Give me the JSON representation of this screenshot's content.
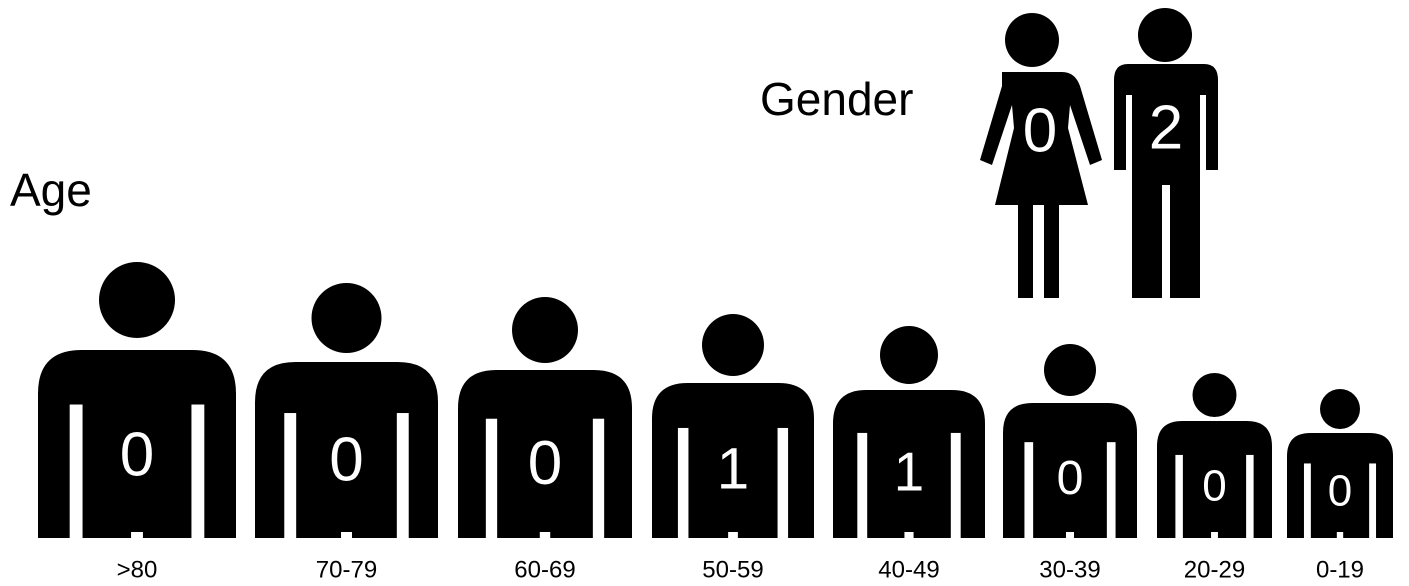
{
  "age": {
    "title": "Age",
    "groups": [
      {
        "label": ">80",
        "count": 0
      },
      {
        "label": "70-79",
        "count": 0
      },
      {
        "label": "60-69",
        "count": 0
      },
      {
        "label": "50-59",
        "count": 1
      },
      {
        "label": "40-49",
        "count": 1
      },
      {
        "label": "30-39",
        "count": 0
      },
      {
        "label": "20-29",
        "count": 0
      },
      {
        "label": "0-19",
        "count": 0
      }
    ]
  },
  "gender": {
    "title": "Gender",
    "female": 0,
    "male": 2
  }
}
